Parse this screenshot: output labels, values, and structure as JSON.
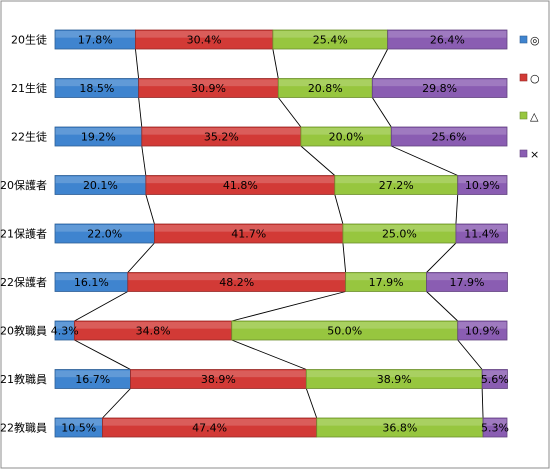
{
  "chart_data": {
    "type": "bar",
    "stacked": true,
    "orientation": "horizontal",
    "percent_stacked": true,
    "categories": [
      "20生徒",
      "21生徒",
      "22生徒",
      "20保護者",
      "21保護者",
      "22保護者",
      "20教職員",
      "21教職員",
      "22教職員"
    ],
    "series": [
      {
        "name": "◎",
        "color": "#3f84cf",
        "values": [
          17.8,
          18.5,
          19.2,
          20.1,
          22.0,
          16.1,
          4.3,
          16.7,
          10.5
        ]
      },
      {
        "name": "○",
        "color": "#d23a36",
        "values": [
          30.4,
          30.9,
          35.2,
          41.8,
          41.7,
          48.2,
          34.8,
          38.9,
          47.4
        ]
      },
      {
        "name": "△",
        "color": "#97c63f",
        "values": [
          25.4,
          20.8,
          20.0,
          27.2,
          25.0,
          17.9,
          50.0,
          38.9,
          36.8
        ]
      },
      {
        "name": "×",
        "color": "#8a5db2",
        "values": [
          26.4,
          29.8,
          25.6,
          10.9,
          11.4,
          17.9,
          10.9,
          5.6,
          5.3
        ]
      }
    ],
    "value_suffix": "%",
    "xlim": [
      0,
      100
    ],
    "series_lines": true,
    "legend_position": "right",
    "grid": false
  }
}
